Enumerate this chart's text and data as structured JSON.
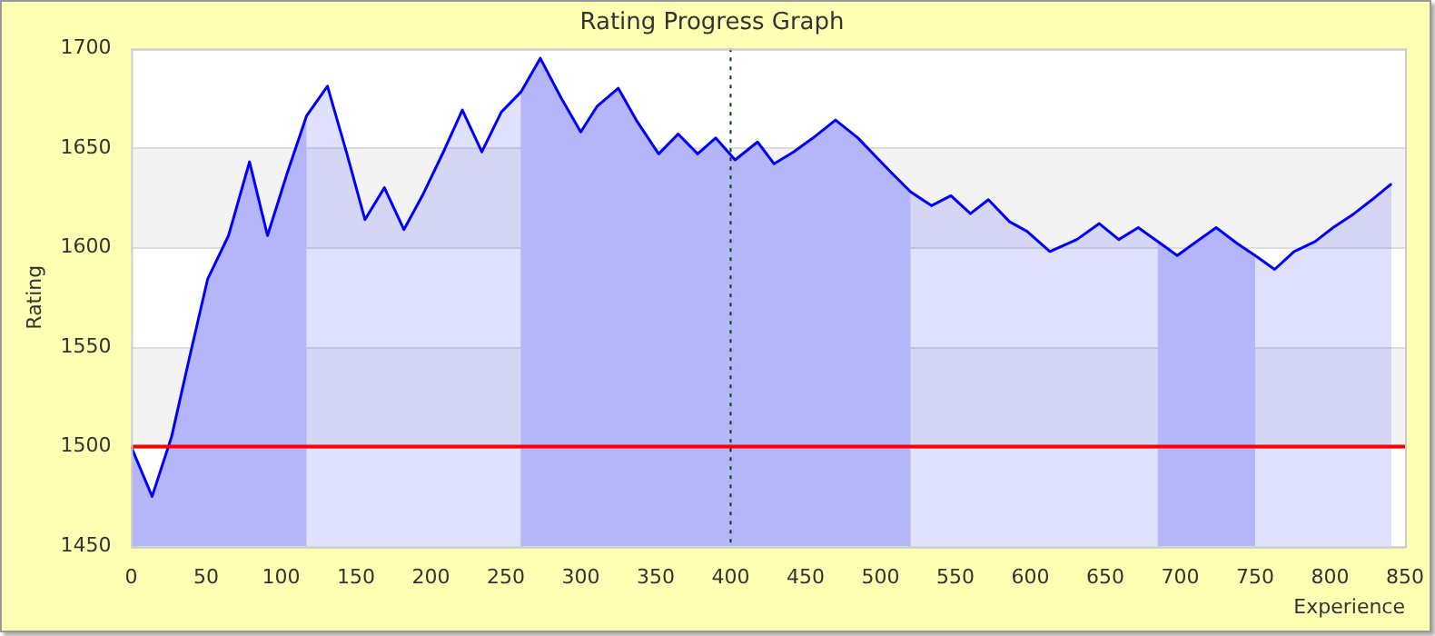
{
  "chart_data": {
    "type": "area",
    "title": "Rating Progress Graph",
    "xlabel": "Experience",
    "ylabel": "Rating",
    "x": [
      0,
      14,
      27,
      39,
      51,
      65,
      79,
      91,
      104,
      117,
      131,
      144,
      156,
      169,
      182,
      195,
      209,
      221,
      234,
      247,
      260,
      273,
      287,
      300,
      311,
      325,
      337,
      352,
      365,
      378,
      390,
      403,
      418,
      429,
      442,
      455,
      470,
      485,
      499,
      508,
      520,
      534,
      547,
      560,
      572,
      586,
      598,
      613,
      631,
      646,
      659,
      672,
      685,
      698,
      711,
      724,
      738,
      750,
      763,
      776,
      790,
      802,
      816,
      828,
      841
    ],
    "series": [
      {
        "color": "#0000ff",
        "values": [
          1500,
          1475,
          1505,
          1545,
          1584,
          1606,
          1643,
          1606,
          1637,
          1666,
          1681,
          1647,
          1614,
          1630,
          1609,
          1627,
          1649,
          1669,
          1648,
          1668,
          1678,
          1695,
          1675,
          1658,
          1671,
          1680,
          1664,
          1647,
          1657,
          1647,
          1655,
          1644,
          1653,
          1642,
          1648,
          1655,
          1664,
          1655,
          1644,
          1637,
          1628,
          1621,
          1626,
          1617,
          1624,
          1613,
          1608,
          1598,
          1604,
          1612,
          1604,
          1610,
          1603,
          1596,
          1603,
          1610,
          1602,
          1596,
          1589,
          1598,
          1603,
          1610,
          1617,
          1624,
          1632
        ]
      }
    ],
    "xlim": [
      0,
      850
    ],
    "xticks": [
      0,
      50,
      100,
      150,
      200,
      250,
      300,
      350,
      400,
      450,
      500,
      550,
      600,
      650,
      700,
      750,
      800,
      850
    ],
    "ylim": [
      1450,
      1700
    ],
    "yticks": [
      1450,
      1500,
      1550,
      1600,
      1650,
      1700
    ],
    "grid": "y",
    "legend": false,
    "ref_lines": [
      {
        "axis": "y",
        "value": 1500,
        "color": "#ff0000",
        "line_style": "solid"
      },
      {
        "axis": "x",
        "value": 400,
        "color": "#004400",
        "line_style": "dotted"
      }
    ],
    "bands": [
      {
        "axis": "x",
        "from": 0,
        "to": 117,
        "color": "#cfcffa"
      },
      {
        "axis": "x",
        "from": 260,
        "to": 520,
        "color": "#cfcffa"
      },
      {
        "axis": "x",
        "from": 685,
        "to": 750,
        "color": "#cfcffa"
      }
    ]
  }
}
